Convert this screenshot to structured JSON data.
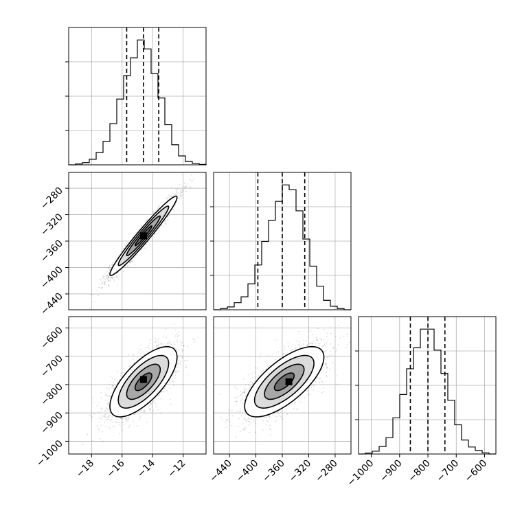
{
  "chart_data": {
    "type": "corner",
    "grid": true,
    "colors": {
      "line": "#000000",
      "grid": "#b0b0b0",
      "points": "#808080",
      "fill_dark": "#000000",
      "fill_light": "#cfcfcf"
    },
    "parameters": [
      {
        "range": [
          -19.5,
          -10.5
        ],
        "ticks": [
          -18,
          -16,
          -14,
          -12
        ],
        "tick_labels": [
          "−18",
          "−16",
          "−14",
          "−12"
        ],
        "quantiles": [
          -15.7,
          -14.6,
          -13.6
        ]
      },
      {
        "range": [
          -464,
          -256
        ],
        "ticks": [
          -440,
          -400,
          -360,
          -320,
          -280
        ],
        "tick_labels": [
          "−440",
          "−400",
          "−360",
          "−320",
          "−280"
        ],
        "quantiles": [
          -397,
          -360,
          -326
        ]
      },
      {
        "range": [
          -1045,
          -560
        ],
        "ticks": [
          -1000,
          -900,
          -800,
          -700,
          -600
        ],
        "tick_labels": [
          "−1000",
          "−900",
          "−800",
          "−700",
          "−600"
        ],
        "quantiles": [
          -862,
          -800,
          -740
        ]
      }
    ],
    "histograms": [
      {
        "param": 0,
        "edges": [
          -19.5,
          -19.05,
          -18.6,
          -18.15,
          -17.7,
          -17.25,
          -16.8,
          -16.35,
          -15.9,
          -15.45,
          -15.0,
          -14.55,
          -14.1,
          -13.65,
          -13.2,
          -12.75,
          -12.3,
          -11.85,
          -11.4,
          -10.95,
          -10.5
        ],
        "counts": [
          0,
          4,
          10,
          25,
          55,
          105,
          185,
          295,
          400,
          480,
          560,
          520,
          410,
          300,
          180,
          90,
          40,
          15,
          6,
          2
        ]
      },
      {
        "param": 1,
        "edges": [
          -464,
          -453.6,
          -443.2,
          -432.8,
          -422.4,
          -412,
          -401.6,
          -391.2,
          -380.8,
          -370.4,
          -360,
          -349.6,
          -339.2,
          -328.8,
          -318.4,
          -308,
          -297.6,
          -287.2,
          -276.8,
          -266.4,
          -256
        ],
        "counts": [
          0,
          5,
          12,
          30,
          55,
          110,
          190,
          290,
          380,
          460,
          530,
          510,
          420,
          300,
          185,
          100,
          40,
          15,
          5,
          0
        ]
      },
      {
        "param": 2,
        "edges": [
          -1045,
          -1020.75,
          -996.5,
          -972.25,
          -948,
          -923.75,
          -899.5,
          -875.25,
          -851,
          -826.75,
          -802.5,
          -778.25,
          -754,
          -729.75,
          -705.5,
          -681.25,
          -657,
          -632.75,
          -608.5,
          -584.25,
          -560
        ],
        "counts": [
          0,
          4,
          12,
          32,
          70,
          155,
          255,
          365,
          455,
          535,
          535,
          445,
          345,
          230,
          125,
          60,
          30,
          15,
          5,
          0
        ]
      }
    ],
    "pairs": [
      {
        "x_param": 0,
        "y_param": 1,
        "center": [
          -14.6,
          -352
        ],
        "sigma": [
          1.1,
          30
        ],
        "rho": 0.97,
        "peak": [
          -14.6,
          -352
        ]
      },
      {
        "x_param": 0,
        "y_param": 2,
        "center": [
          -14.6,
          -790
        ],
        "sigma": [
          1.1,
          62
        ],
        "rho": 0.7,
        "peak": [
          -14.6,
          -782
        ]
      },
      {
        "x_param": 1,
        "y_param": 2,
        "center": [
          -357,
          -790
        ],
        "sigma": [
          30,
          62
        ],
        "rho": 0.7,
        "peak": [
          -350,
          -790
        ]
      }
    ],
    "contour_levels": [
      0.5,
      1.0,
      1.5,
      2.0
    ]
  }
}
